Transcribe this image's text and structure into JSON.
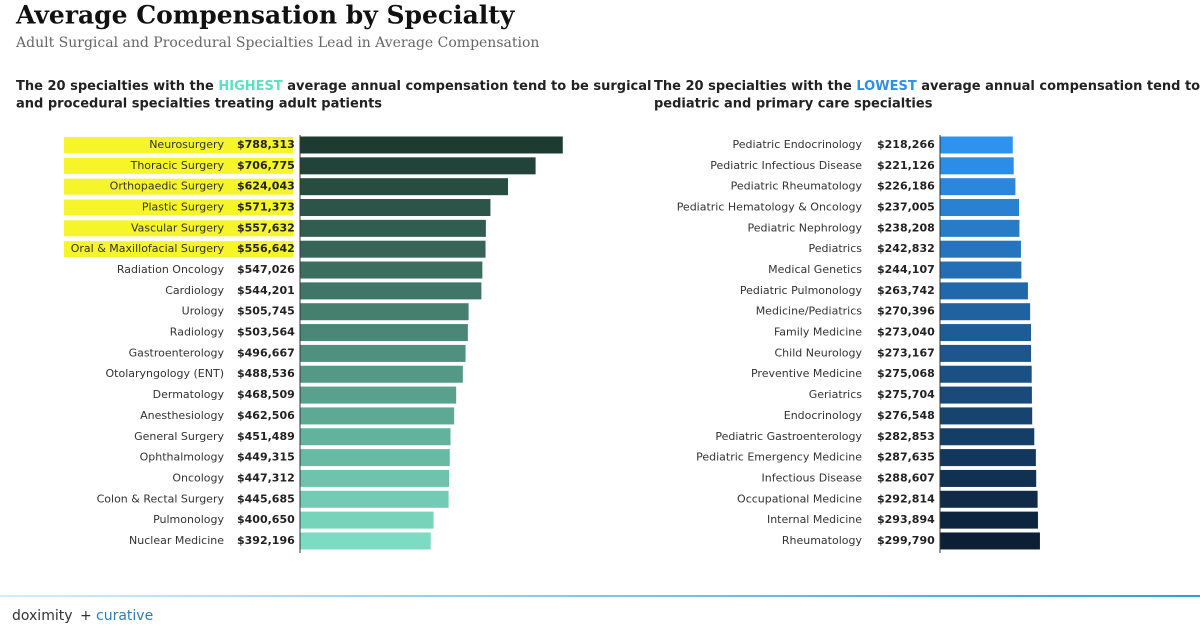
{
  "header": {
    "title": "Average Compensation by Specialty",
    "subtitle": "Adult Surgical and Procedural Specialties Lead in Average Compensation"
  },
  "chart_data": [
    {
      "type": "hbar",
      "title_parts": [
        "The 20 specialties with the ",
        "HIGHEST",
        " average annual compensation tend to be surgical",
        "and procedural specialties treating adult patients"
      ],
      "highlight_color": "#5fe0c0",
      "categories": [
        "Neurosurgery",
        "Thoracic Surgery",
        "Orthopaedic Surgery",
        "Plastic Surgery",
        "Vascular Surgery",
        "Oral & Maxillofacial Surgery",
        "Radiation Oncology",
        "Cardiology",
        "Urology",
        "Radiology",
        "Gastroenterology",
        "Otolaryngology (ENT)",
        "Dermatology",
        "Anesthesiology",
        "General Surgery",
        "Ophthalmology",
        "Oncology",
        "Colon & Rectal Surgery",
        "Pulmonology",
        "Nuclear Medicine"
      ],
      "values": [
        788313,
        706775,
        624043,
        571373,
        557632,
        556642,
        547026,
        544201,
        505745,
        503564,
        496667,
        488536,
        468509,
        462506,
        451489,
        449315,
        447312,
        445685,
        400650,
        392196
      ],
      "value_labels": [
        "$788,313",
        "$706,775",
        "$624,043",
        "$571,373",
        "$557,632",
        "$556,642",
        "$547,026",
        "$544,201",
        "$505,745",
        "$503,564",
        "$496,667",
        "$488,536",
        "$468,509",
        "$462,506",
        "$451,489",
        "$449,315",
        "$447,312",
        "$445,685",
        "$400,650",
        "$392,196"
      ],
      "color_start": "#1d3b31",
      "color_end": "#7cdcc3",
      "label_highlight": "#f5f52a",
      "highlighted_rows": 6,
      "xlim": [
        0,
        900000
      ]
    },
    {
      "type": "hbar",
      "title_parts": [
        "The 20 specialties with the ",
        "LOWEST",
        " average annual compensation tend to be",
        "pediatric and primary care specialties"
      ],
      "highlight_color": "#2f8fe6",
      "categories": [
        "Pediatric Endocrinology",
        "Pediatric Infectious Disease",
        "Pediatric Rheumatology",
        "Pediatric Hematology & Oncology",
        "Pediatric Nephrology",
        "Pediatrics",
        "Medical Genetics",
        "Pediatric Pulmonology",
        "Medicine/Pediatrics",
        "Family Medicine",
        "Child Neurology",
        "Preventive Medicine",
        "Geriatrics",
        "Endocrinology",
        "Pediatric Gastroenterology",
        "Pediatric Emergency Medicine",
        "Infectious Disease",
        "Occupational Medicine",
        "Internal Medicine",
        "Rheumatology"
      ],
      "values": [
        218266,
        221126,
        226186,
        237005,
        238208,
        242832,
        244107,
        263742,
        270396,
        273040,
        273167,
        275068,
        275704,
        276548,
        282853,
        287635,
        288607,
        292814,
        293894,
        299790
      ],
      "value_labels": [
        "$218,266",
        "$221,126",
        "$226,186",
        "$237,005",
        "$238,208",
        "$242,832",
        "$244,107",
        "$263,742",
        "$270,396",
        "$273,040",
        "$273,167",
        "$275,068",
        "$275,704",
        "$276,548",
        "$282,853",
        "$287,635",
        "$288,607",
        "$292,814",
        "$293,894",
        "$299,790"
      ],
      "color_start": "#2e93ee",
      "color_end": "#0c1f35",
      "xlim": [
        0,
        900000
      ]
    }
  ],
  "footer": {
    "brand_1": "doximity",
    "plus": "+",
    "brand_2": "curative"
  }
}
